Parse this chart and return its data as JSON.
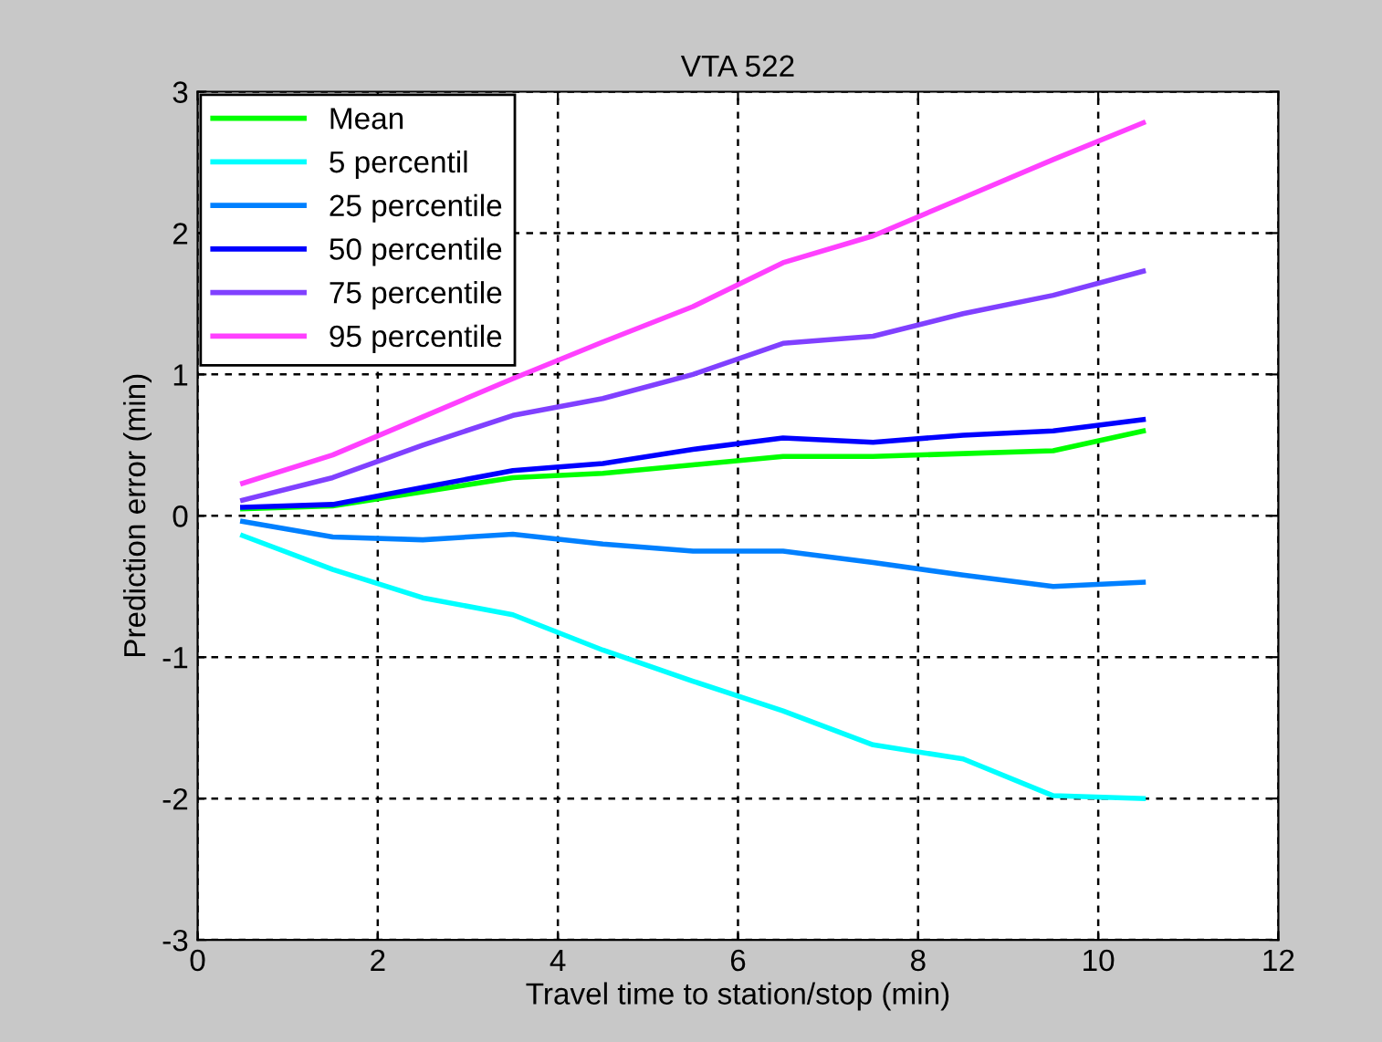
{
  "chart_data": {
    "type": "line",
    "title": "VTA 522",
    "xlabel": "Travel time to station/stop (min)",
    "ylabel": "Prediction error (min)",
    "x": [
      0.5,
      1.5,
      2.5,
      3.5,
      4.5,
      5.5,
      6.5,
      7.5,
      8.5,
      9.5,
      10.5
    ],
    "series": [
      {
        "name": "Mean",
        "color": "#00ff00",
        "values": [
          0.05,
          0.07,
          0.17,
          0.27,
          0.3,
          0.36,
          0.42,
          0.42,
          0.44,
          0.46,
          0.6
        ]
      },
      {
        "name": "5 percentil",
        "color": "#00ffff",
        "values": [
          -0.14,
          -0.38,
          -0.58,
          -0.7,
          -0.95,
          -1.17,
          -1.38,
          -1.62,
          -1.72,
          -1.98,
          -2.0
        ]
      },
      {
        "name": "25 percentile",
        "color": "#0080ff",
        "values": [
          -0.04,
          -0.15,
          -0.17,
          -0.13,
          -0.2,
          -0.25,
          -0.25,
          -0.33,
          -0.42,
          -0.5,
          -0.47
        ]
      },
      {
        "name": "50 percentile",
        "color": "#0000ff",
        "values": [
          0.06,
          0.08,
          0.2,
          0.32,
          0.37,
          0.47,
          0.55,
          0.52,
          0.57,
          0.6,
          0.68
        ]
      },
      {
        "name": "75 percentile",
        "color": "#8040ff",
        "values": [
          0.11,
          0.27,
          0.5,
          0.71,
          0.83,
          1.0,
          1.22,
          1.27,
          1.43,
          1.56,
          1.73
        ]
      },
      {
        "name": "95 percentile",
        "color": "#ff40ff",
        "values": [
          0.23,
          0.43,
          0.7,
          0.97,
          1.23,
          1.48,
          1.79,
          1.98,
          2.25,
          2.52,
          2.78
        ]
      }
    ],
    "xlim": [
      0,
      12
    ],
    "xticks": [
      0,
      2,
      4,
      6,
      8,
      10,
      12
    ],
    "ylim": [
      -3,
      3
    ],
    "yticks": [
      -3,
      -2,
      -1,
      0,
      1,
      2,
      3
    ],
    "grid": true,
    "legend": "top left",
    "marker": "none",
    "line_style": "solid"
  }
}
